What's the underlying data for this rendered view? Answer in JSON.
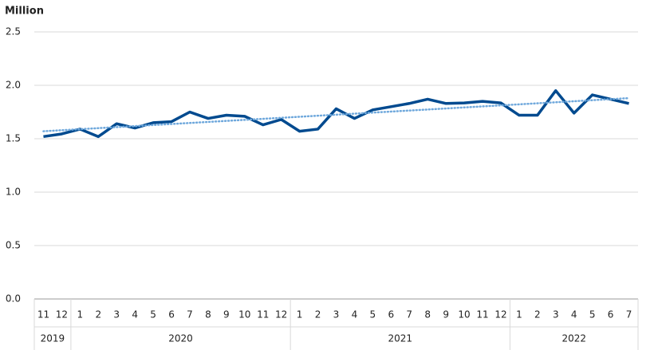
{
  "chart_data": {
    "type": "line",
    "title": "Million",
    "categories": [
      "11",
      "12",
      "1",
      "2",
      "3",
      "4",
      "5",
      "6",
      "7",
      "8",
      "9",
      "10",
      "11",
      "12",
      "1",
      "2",
      "3",
      "4",
      "5",
      "6",
      "7",
      "8",
      "9",
      "10",
      "11",
      "12",
      "1",
      "2",
      "3",
      "4",
      "5",
      "6",
      "7"
    ],
    "groups": [
      {
        "label": "2019",
        "size": 2
      },
      {
        "label": "2020",
        "size": 12
      },
      {
        "label": "2021",
        "size": 12
      },
      {
        "label": "2022",
        "size": 7
      }
    ],
    "series": [
      {
        "color": "#004a8f",
        "values": [
          1.52,
          1.545,
          1.59,
          1.52,
          1.64,
          1.6,
          1.65,
          1.66,
          1.75,
          1.69,
          1.72,
          1.71,
          1.63,
          1.68,
          1.57,
          1.59,
          1.78,
          1.69,
          1.77,
          1.8,
          1.83,
          1.87,
          1.83,
          1.835,
          1.85,
          1.835,
          1.72,
          1.72,
          1.95,
          1.74,
          1.91,
          1.87,
          1.83
        ]
      }
    ],
    "trendline": {
      "color": "#6fa8dc",
      "values": [
        1.57,
        1.88
      ]
    },
    "ylim": [
      0,
      2.5
    ],
    "yticks": [
      {
        "value": 0,
        "label": "0.0"
      },
      0.5,
      {
        "value": 1,
        "label": "1.0"
      },
      1.5,
      {
        "value": 2,
        "label": "2.0"
      },
      2.5
    ],
    "grid": true
  }
}
